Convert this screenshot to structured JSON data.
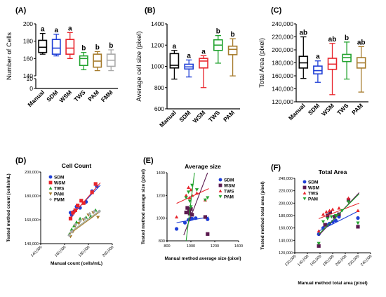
{
  "chart_data": [
    {
      "panel": "(A)",
      "type": "box",
      "ylabel": "Number of Cells",
      "ylim": [
        0,
        200
      ],
      "axis_break": [
        10,
        140
      ],
      "yticks": [
        0,
        10,
        140,
        160,
        180,
        200
      ],
      "categories": [
        "Manual",
        "SDM",
        "WSM",
        "TWS",
        "PAM",
        "FMM"
      ],
      "colors": [
        "#000000",
        "#1f3fd6",
        "#e8242b",
        "#22a32f",
        "#a67b2c",
        "#a9a9a9"
      ],
      "boxes": [
        {
          "min": 165,
          "q1": 167,
          "median": 173,
          "q3": 181,
          "max": 189
        },
        {
          "min": 163,
          "q1": 165,
          "median": 172,
          "q3": 182,
          "max": 188
        },
        {
          "min": 160,
          "q1": 165,
          "median": 172,
          "q3": 182,
          "max": 190
        },
        {
          "min": 147,
          "q1": 152,
          "median": 160,
          "q3": 163,
          "max": 167
        },
        {
          "min": 146,
          "q1": 150,
          "median": 157,
          "q3": 165,
          "max": 168
        },
        {
          "min": 146,
          "q1": 151,
          "median": 158,
          "q3": 165,
          "max": 170
        }
      ],
      "sig_letters": [
        "a",
        "a",
        "a",
        "b",
        "b",
        "b"
      ]
    },
    {
      "panel": "(B)",
      "type": "box",
      "ylabel": "Average cell size (pixel)",
      "ylim": [
        600,
        1400
      ],
      "yticks": [
        600,
        800,
        1000,
        1200,
        1400
      ],
      "categories": [
        "Manual",
        "SDM",
        "WSM",
        "TWS",
        "PAM"
      ],
      "colors": [
        "#000000",
        "#1f3fd6",
        "#e8242b",
        "#22a32f",
        "#a67b2c"
      ],
      "boxes": [
        {
          "min": 880,
          "q1": 985,
          "median": 1010,
          "q3": 1120,
          "max": 1150
        },
        {
          "min": 900,
          "q1": 975,
          "median": 995,
          "q3": 1020,
          "max": 1060
        },
        {
          "min": 800,
          "q1": 985,
          "median": 1050,
          "q3": 1075,
          "max": 1100
        },
        {
          "min": 1030,
          "q1": 1150,
          "median": 1200,
          "q3": 1250,
          "max": 1290
        },
        {
          "min": 910,
          "q1": 1110,
          "median": 1160,
          "q3": 1190,
          "max": 1260
        }
      ],
      "sig_letters": [
        "a",
        "a",
        "a",
        "b",
        "b"
      ]
    },
    {
      "panel": "(C)",
      "type": "box",
      "ylabel": "Total Area (pixel)",
      "ylim": [
        120000,
        240000
      ],
      "yticks": [
        120000,
        140000,
        160000,
        180000,
        200000,
        220000,
        240000
      ],
      "ytick_labels": [
        "120,000",
        "140,000",
        "160,000",
        "180,000",
        "200,000",
        "220,000",
        "240,000"
      ],
      "categories": [
        "Manual",
        "SDM",
        "WSM",
        "TWS",
        "PAM"
      ],
      "colors": [
        "#000000",
        "#1f3fd6",
        "#e8242b",
        "#22a32f",
        "#a67b2c"
      ],
      "boxes": [
        {
          "min": 156000,
          "q1": 172000,
          "median": 180000,
          "q3": 190000,
          "max": 220000
        },
        {
          "min": 150000,
          "q1": 163000,
          "median": 168000,
          "q3": 175000,
          "max": 183000
        },
        {
          "min": 131000,
          "q1": 170000,
          "median": 178000,
          "q3": 187000,
          "max": 210000
        },
        {
          "min": 155000,
          "q1": 182000,
          "median": 188000,
          "q3": 193000,
          "max": 212000
        },
        {
          "min": 135000,
          "q1": 172000,
          "median": 180000,
          "q3": 188000,
          "max": 205000
        }
      ],
      "sig_letters": [
        "ab",
        "a",
        "ab",
        "b",
        "ab"
      ]
    },
    {
      "panel": "(D)",
      "type": "scatter",
      "title": "Cell Count",
      "xlabel": "Manual count (cells/mL)",
      "ylabel": "Tested method count (cells/mL)",
      "xlim": [
        140000,
        200000
      ],
      "ylim": [
        140000,
        200000
      ],
      "xticks": [
        140000,
        160000,
        180000,
        200000
      ],
      "xtick_labels": [
        "140,000",
        "160,000",
        "180,000",
        "200,000"
      ],
      "yticks": [
        140000,
        160000,
        180000,
        200000
      ],
      "ytick_labels": [
        "140,000",
        "160,000",
        "180,000",
        "200,000"
      ],
      "legend_position": "top-left",
      "series": [
        {
          "name": "SDM",
          "color": "#1f3fd6",
          "marker": "circle",
          "x": [
            165000,
            166000,
            168000,
            170000,
            173000,
            178000,
            183000,
            187000
          ],
          "y": [
            166000,
            164000,
            167000,
            171000,
            170000,
            175000,
            184000,
            188000
          ],
          "fit": [
            [
              165000,
              163000
            ],
            [
              190000,
              189000
            ]
          ]
        },
        {
          "name": "WSM",
          "color": "#e8242b",
          "marker": "square",
          "x": [
            165000,
            167000,
            169000,
            171000,
            174000,
            176000,
            183000,
            186000
          ],
          "y": [
            161000,
            166000,
            168000,
            172000,
            176000,
            174000,
            183000,
            190000
          ],
          "fit": [
            [
              165000,
              162000
            ],
            [
              190000,
              191000
            ]
          ]
        },
        {
          "name": "TWS",
          "color": "#22a32f",
          "marker": "triangle",
          "x": [
            164000,
            166000,
            168000,
            170000,
            173000,
            178000,
            182000,
            186000
          ],
          "y": [
            148000,
            152000,
            155000,
            158000,
            161000,
            162000,
            163000,
            168000
          ],
          "fit": [
            [
              164000,
              149000
            ],
            [
              190000,
              168000
            ]
          ]
        },
        {
          "name": "PAM",
          "color": "#a67b2c",
          "marker": "triangle-down",
          "x": [
            165000,
            167000,
            169000,
            172000,
            176000,
            180000,
            184000,
            188000
          ],
          "y": [
            146000,
            150000,
            155000,
            157000,
            160000,
            164000,
            166000,
            162000
          ],
          "fit": [
            [
              164000,
              148000
            ],
            [
              190000,
              167000
            ]
          ]
        },
        {
          "name": "FMM",
          "color": "#a9a9a9",
          "marker": "diamond",
          "x": [
            164000,
            166000,
            169000,
            173000,
            177000,
            181000,
            185000,
            189000
          ],
          "y": [
            147000,
            150000,
            156000,
            159000,
            161000,
            165000,
            167000,
            167000
          ],
          "fit": [
            [
              164000,
              149000
            ],
            [
              190000,
              168000
            ]
          ]
        }
      ]
    },
    {
      "panel": "(E)",
      "type": "scatter",
      "title": "Average size",
      "xlabel": "Manual method average size (pixel)",
      "ylabel": "Tested method average size (pixel)",
      "xlim": [
        800,
        1400
      ],
      "ylim": [
        800,
        1400
      ],
      "xticks": [
        800,
        1000,
        1200,
        1400
      ],
      "yticks": [
        800,
        1000,
        1200,
        1400
      ],
      "legend_position": "right",
      "series": [
        {
          "name": "SDM",
          "color": "#1f3fd6",
          "marker": "circle",
          "x": [
            880,
            950,
            980,
            995,
            1000,
            1010,
            1040,
            1140
          ],
          "y": [
            905,
            960,
            985,
            990,
            995,
            995,
            1000,
            990
          ],
          "fit": [
            [
              880,
              960
            ],
            [
              1150,
              1010
            ]
          ]
        },
        {
          "name": "WSM",
          "color": "#5b1a4f",
          "marker": "square",
          "x": [
            960,
            970,
            985,
            990,
            1000,
            1010,
            1120,
            1140
          ],
          "y": [
            1050,
            1090,
            1060,
            1040,
            1080,
            1030,
            1010,
            860
          ],
          "fit": [
            [
              940,
              850
            ],
            [
              1140,
              1400
            ]
          ]
        },
        {
          "name": "TWS",
          "color": "#e8242b",
          "marker": "triangle",
          "x": [
            880,
            960,
            980,
            990,
            1000,
            1010,
            1050,
            1120
          ],
          "y": [
            1010,
            1200,
            1270,
            1180,
            1250,
            1200,
            1220,
            1160
          ],
          "fit": [
            [
              880,
              1130
            ],
            [
              1150,
              1260
            ]
          ]
        },
        {
          "name": "PAM",
          "color": "#22a32f",
          "marker": "triangle-down",
          "x": [
            960,
            980,
            990,
            1000,
            1010,
            1050,
            1120,
            1140
          ],
          "y": [
            1180,
            1230,
            1150,
            1100,
            1290,
            1250,
            1160,
            1180
          ],
          "fit": [
            [
              960,
              800
            ],
            [
              1030,
              1400
            ]
          ]
        }
      ]
    },
    {
      "panel": "(F)",
      "type": "scatter",
      "title": "Total Area",
      "xlabel": "Manual method total area (pixel)",
      "ylabel": "Tested method total area (pixel)",
      "xlim": [
        120000,
        240000
      ],
      "ylim": [
        120000,
        240000
      ],
      "xticks": [
        120000,
        140000,
        160000,
        180000,
        200000,
        220000,
        240000
      ],
      "xtick_labels": [
        "120,000",
        "140,000",
        "160,000",
        "180,000",
        "200,000",
        "220,000",
        "240,000"
      ],
      "yticks": [
        120000,
        140000,
        160000,
        180000,
        200000,
        220000,
        240000
      ],
      "ytick_labels": [
        "120,000",
        "140,000",
        "160,000",
        "180,000",
        "200,000",
        "220,000",
        "240,000"
      ],
      "legend_position": "top-left",
      "series": [
        {
          "name": "SDM",
          "color": "#1f3fd6",
          "marker": "circle",
          "x": [
            158000,
            165000,
            170000,
            175000,
            180000,
            185000,
            190000,
            220000
          ],
          "y": [
            150000,
            160000,
            165000,
            167000,
            170000,
            172000,
            178000,
            176000
          ],
          "fit": [
            [
              158000,
              155000
            ],
            [
              222000,
              188000
            ]
          ]
        },
        {
          "name": "WSM",
          "color": "#5b1a4f",
          "marker": "square",
          "x": [
            158000,
            168000,
            172000,
            176000,
            183000,
            190000,
            205000,
            220000
          ],
          "y": [
            131000,
            165000,
            180000,
            185000,
            178000,
            182000,
            205000,
            162000
          ],
          "fit": [
            [
              158000,
              148000
            ],
            [
              222000,
              217000
            ]
          ]
        },
        {
          "name": "TWS",
          "color": "#e8242b",
          "marker": "triangle",
          "x": [
            158000,
            165000,
            170000,
            175000,
            180000,
            190000,
            205000,
            220000
          ],
          "y": [
            155000,
            182000,
            186000,
            188000,
            190000,
            192000,
            208000,
            188000
          ],
          "fit": [
            [
              158000,
              175000
            ],
            [
              222000,
              200000
            ]
          ]
        },
        {
          "name": "PAM",
          "color": "#22a32f",
          "marker": "triangle-down",
          "x": [
            158000,
            165000,
            172000,
            178000,
            185000,
            195000,
            205000,
            220000
          ],
          "y": [
            135000,
            170000,
            175000,
            178000,
            180000,
            188000,
            202000,
            168000
          ],
          "fit": [
            [
              158000,
              150000
            ],
            [
              222000,
              215000
            ]
          ]
        }
      ]
    }
  ]
}
